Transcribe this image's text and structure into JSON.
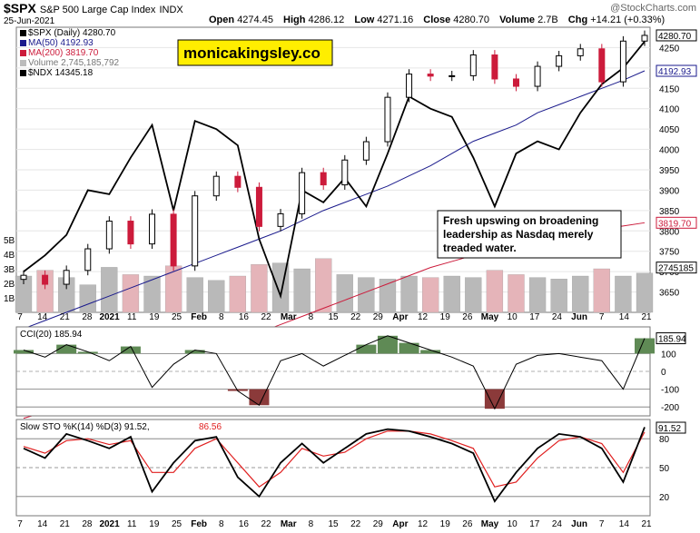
{
  "header": {
    "symbol": "$SPX",
    "name": "S&P 500 Large Cap Index",
    "exchange": "INDX",
    "date": "25-Jun-2021",
    "brand": "@StockCharts.com",
    "open_label": "Open",
    "open": "4274.45",
    "high_label": "High",
    "high": "4286.12",
    "low_label": "Low",
    "low": "4271.16",
    "close_label": "Close",
    "close": "4280.70",
    "volume_label": "Volume",
    "volume": "2.7B",
    "chg_label": "Chg",
    "chg": "+14.21 (+0.33%)"
  },
  "legend": {
    "spx": "$SPX (Daily) 4280.70",
    "ma50": "MA(50) 4192.93",
    "ma200": "MA(200) 3819.70",
    "volume": "Volume 2,745,185,792",
    "ndx": "$NDX 14345.18"
  },
  "watermark": "monicakingsley.co",
  "annotation": {
    "line1": "Fresh upswing on broadening",
    "line2": "leadership as Nasdaq merely",
    "line3": "treaded water."
  },
  "colors": {
    "up": "#000000",
    "down": "#cc1b3b",
    "ma50": "#1a1a8c",
    "ma200": "#cc1b3b",
    "ndx": "#000000",
    "cci_fill": "#5f8a55",
    "cci_neg": "#8b3a3a",
    "stoch_k": "#000000",
    "stoch_d": "#e02020",
    "vol_up": "#b9b9b9",
    "vol_down": "#e5b4b9"
  },
  "price_badges": {
    "close": "4280.70",
    "ma50": "4192.93",
    "ma200": "3819.70",
    "vol": "2745185"
  },
  "x_ticks": [
    "7",
    "14",
    "21",
    "28",
    "2021",
    "11",
    "19",
    "25",
    "Feb",
    "8",
    "16",
    "22",
    "Mar",
    "8",
    "15",
    "22",
    "29",
    "Apr",
    "12",
    "19",
    "26",
    "May",
    "10",
    "17",
    "24",
    "Jun",
    "7",
    "14",
    "21"
  ],
  "chart_data": [
    {
      "type": "candlestick",
      "title": "$SPX (Daily)",
      "ylim": [
        3600,
        4300
      ],
      "yticks": [
        3650,
        3700,
        3750,
        3800,
        3850,
        3900,
        3950,
        4000,
        4050,
        4100,
        4150,
        4200,
        4250
      ],
      "vol_ticks": [
        "1B",
        "2B",
        "3B",
        "4B",
        "5B"
      ],
      "x": [
        "2020-12-07",
        "2020-12-14",
        "2020-12-21",
        "2020-12-28",
        "2021-01-04",
        "2021-01-11",
        "2021-01-19",
        "2021-01-25",
        "2021-02-01",
        "2021-02-08",
        "2021-02-16",
        "2021-02-22",
        "2021-03-01",
        "2021-03-08",
        "2021-03-15",
        "2021-03-22",
        "2021-03-29",
        "2021-04-05",
        "2021-04-12",
        "2021-04-19",
        "2021-04-26",
        "2021-05-03",
        "2021-05-10",
        "2021-05-17",
        "2021-05-24",
        "2021-06-01",
        "2021-06-07",
        "2021-06-14",
        "2021-06-21",
        "2021-06-25"
      ],
      "close": [
        3691,
        3669,
        3703,
        3756,
        3824,
        3768,
        3841,
        3714,
        3886,
        3934,
        3907,
        3811,
        3842,
        3943,
        3913,
        3974,
        4019,
        4128,
        4185,
        4180,
        4181,
        4232,
        4173,
        4155,
        4204,
        4230,
        4247,
        4166,
        4266,
        4280
      ],
      "ma50": [
        3560,
        3580,
        3600,
        3620,
        3640,
        3660,
        3680,
        3700,
        3720,
        3740,
        3760,
        3780,
        3800,
        3825,
        3850,
        3870,
        3890,
        3910,
        3935,
        3960,
        3990,
        4020,
        4040,
        4060,
        4090,
        4110,
        4130,
        4150,
        4170,
        4193
      ],
      "ma200": [
        3340,
        3355,
        3370,
        3390,
        3410,
        3430,
        3450,
        3470,
        3490,
        3510,
        3530,
        3550,
        3570,
        3590,
        3610,
        3630,
        3650,
        3670,
        3690,
        3710,
        3725,
        3740,
        3755,
        3765,
        3775,
        3785,
        3795,
        3805,
        3812,
        3820
      ],
      "ndx": [
        3700,
        3740,
        3790,
        3900,
        3890,
        3980,
        4060,
        3850,
        4070,
        4050,
        4010,
        3780,
        3640,
        3900,
        3870,
        3930,
        3860,
        3990,
        4130,
        4100,
        4080,
        3980,
        3860,
        3990,
        4020,
        4000,
        4090,
        4160,
        4200,
        4265
      ],
      "volume_b": [
        2.5,
        2.9,
        2.4,
        1.9,
        3.1,
        2.6,
        2.5,
        3.2,
        2.4,
        2.2,
        2.5,
        3.3,
        3.4,
        3.0,
        3.7,
        2.6,
        2.4,
        2.3,
        2.5,
        2.4,
        2.5,
        2.4,
        2.9,
        2.6,
        2.4,
        2.3,
        2.5,
        3.0,
        2.5,
        2.7
      ]
    },
    {
      "type": "line",
      "title": "CCI(20)",
      "label": "CCI(20) 185.94",
      "ylim": [
        -250,
        250
      ],
      "yticks": [
        -200,
        -100,
        0,
        100
      ],
      "values": [
        120,
        80,
        150,
        110,
        60,
        140,
        -90,
        40,
        120,
        100,
        -110,
        -190,
        60,
        100,
        30,
        90,
        150,
        200,
        160,
        120,
        80,
        30,
        -210,
        40,
        90,
        100,
        80,
        60,
        -100,
        186
      ]
    },
    {
      "type": "line",
      "title": "Slow STO %K(14) %D(3)",
      "label_k": "Slow STO %K(14) %D(3) 91.52,",
      "label_d": "86.56",
      "ylim": [
        0,
        100
      ],
      "yticks": [
        20,
        50,
        80
      ],
      "k": [
        70,
        60,
        85,
        78,
        70,
        82,
        25,
        55,
        78,
        82,
        40,
        20,
        55,
        75,
        55,
        70,
        85,
        90,
        88,
        82,
        75,
        65,
        15,
        45,
        70,
        85,
        82,
        70,
        35,
        92
      ],
      "d": [
        72,
        65,
        78,
        80,
        74,
        78,
        45,
        45,
        70,
        80,
        55,
        30,
        45,
        70,
        62,
        66,
        80,
        88,
        88,
        85,
        78,
        70,
        30,
        35,
        60,
        78,
        82,
        75,
        45,
        87
      ]
    }
  ]
}
